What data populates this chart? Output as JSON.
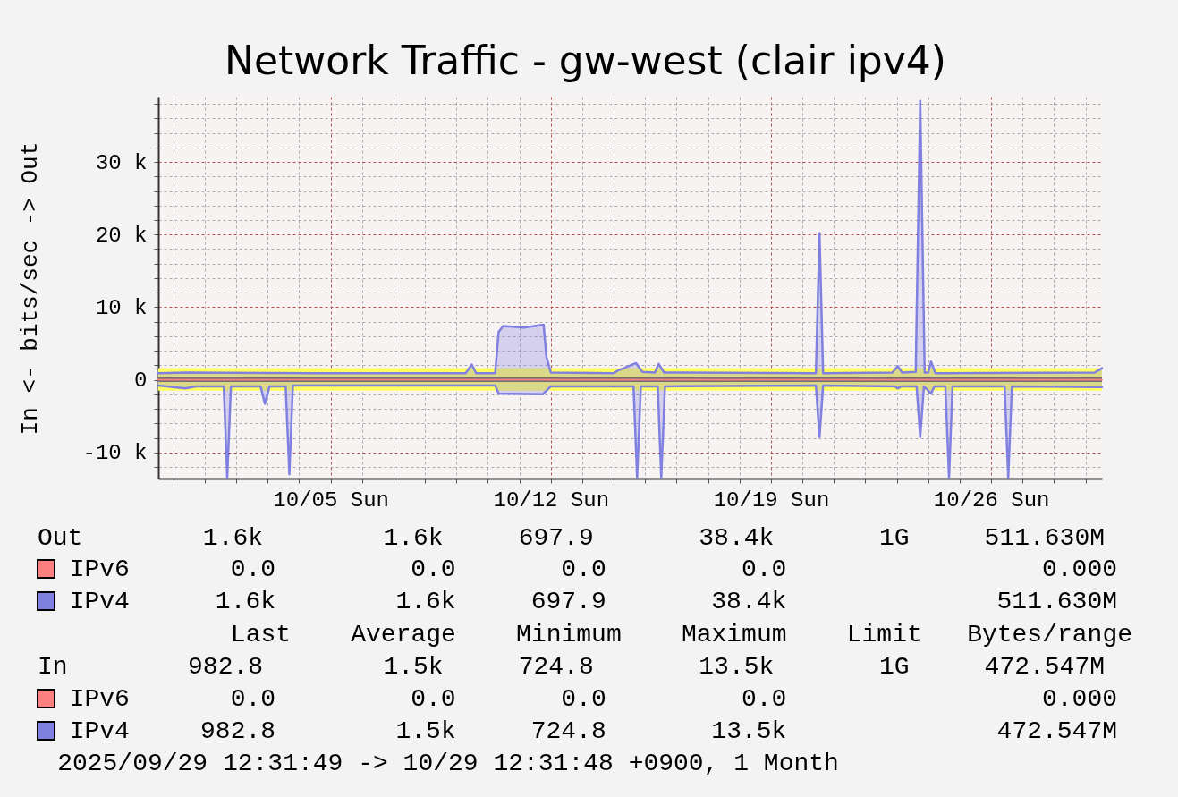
{
  "chart_data": {
    "type": "line",
    "title": "Network Traffic - gw-west (clair ipv4)",
    "ylabel": "In <- bits/sec -> Out",
    "xlim": [
      "2025-09-29T12:31",
      "2025-10-29T12:31"
    ],
    "xticks": [
      {
        "value": "2025-09-30",
        "label": null
      },
      {
        "value": "2025-10-01",
        "label": null
      },
      {
        "value": "2025-10-02",
        "label": null
      },
      {
        "value": "2025-10-03",
        "label": null
      },
      {
        "value": "2025-10-04",
        "label": null
      },
      {
        "value": "2025-10-05",
        "label": "10/05 Sun"
      },
      {
        "value": "2025-10-06",
        "label": null
      },
      {
        "value": "2025-10-07",
        "label": null
      },
      {
        "value": "2025-10-08",
        "label": null
      },
      {
        "value": "2025-10-09",
        "label": null
      },
      {
        "value": "2025-10-10",
        "label": null
      },
      {
        "value": "2025-10-11",
        "label": null
      },
      {
        "value": "2025-10-12",
        "label": "10/12 Sun"
      },
      {
        "value": "2025-10-13",
        "label": null
      },
      {
        "value": "2025-10-14",
        "label": null
      },
      {
        "value": "2025-10-15",
        "label": null
      },
      {
        "value": "2025-10-16",
        "label": null
      },
      {
        "value": "2025-10-17",
        "label": null
      },
      {
        "value": "2025-10-18",
        "label": null
      },
      {
        "value": "2025-10-19",
        "label": "10/19 Sun"
      },
      {
        "value": "2025-10-20",
        "label": null
      },
      {
        "value": "2025-10-21",
        "label": null
      },
      {
        "value": "2025-10-22",
        "label": null
      },
      {
        "value": "2025-10-23",
        "label": null
      },
      {
        "value": "2025-10-24",
        "label": null
      },
      {
        "value": "2025-10-25",
        "label": null
      },
      {
        "value": "2025-10-26",
        "label": "10/26 Sun"
      },
      {
        "value": "2025-10-27",
        "label": null
      },
      {
        "value": "2025-10-28",
        "label": null
      },
      {
        "value": "2025-10-29",
        "label": null
      }
    ],
    "ylim": [
      -13600,
      39000
    ],
    "yticks": [
      {
        "value": -12000,
        "label": null
      },
      {
        "value": -10000,
        "label": "-10 k"
      },
      {
        "value": -8000,
        "label": null
      },
      {
        "value": -6000,
        "label": null
      },
      {
        "value": -4000,
        "label": null
      },
      {
        "value": -2000,
        "label": null
      },
      0,
      {
        "value": 2000,
        "label": null
      },
      {
        "value": 4000,
        "label": null
      },
      {
        "value": 6000,
        "label": null
      },
      {
        "value": 8000,
        "label": null
      },
      {
        "value": 10000,
        "label": "10 k"
      },
      {
        "value": 12000,
        "label": null
      },
      {
        "value": 14000,
        "label": null
      },
      {
        "value": 16000,
        "label": null
      },
      {
        "value": 18000,
        "label": null
      },
      {
        "value": 20000,
        "label": "20 k"
      },
      {
        "value": 22000,
        "label": null
      },
      {
        "value": 24000,
        "label": null
      },
      {
        "value": 26000,
        "label": null
      },
      {
        "value": 28000,
        "label": null
      },
      {
        "value": 30000,
        "label": "30 k"
      },
      {
        "value": 32000,
        "label": null
      },
      {
        "value": 34000,
        "label": null
      },
      {
        "value": 36000,
        "label": null
      },
      {
        "value": 38000,
        "label": null
      }
    ],
    "grid": true,
    "legend": "bottom",
    "bands": [
      {
        "axis": "y",
        "from": -1500,
        "to": 1600,
        "color": "#ffff60"
      }
    ],
    "ref_lines": [
      {
        "axis": "y",
        "value": 0,
        "color": "#707070"
      }
    ],
    "series": [
      {
        "name": "IPv6",
        "color": "#ff8080",
        "type": "line",
        "x": [
          "2025-09-29T12:31",
          "2025-10-29T12:31"
        ],
        "values": [
          0,
          0
        ]
      },
      {
        "name": "IPv4",
        "color": "#8080e0",
        "type": "area",
        "x": [
          "2025-09-29T12:31",
          "2025-09-30T09:00",
          "2025-10-04T13:40",
          "2025-10-09T07:00",
          "2025-10-09T11:40",
          "2025-10-09T15:00",
          "2025-10-10T05:30",
          "2025-10-10T08:10",
          "2025-10-10T11:40",
          "2025-10-11T03:25",
          "2025-10-11T18:30",
          "2025-10-11T20:35",
          "2025-10-12T00:00",
          "2025-10-14T00:00",
          "2025-10-14T03:20",
          "2025-10-14T17:05",
          "2025-10-14T21:50",
          "2025-10-15T07:25",
          "2025-10-15T10:15",
          "2025-10-15T14:25",
          "2025-10-20T10:15",
          "2025-10-20T13:00",
          "2025-10-20T15:45",
          "2025-10-22T20:35",
          "2025-10-23T00:40",
          "2025-10-23T04:05",
          "2025-10-23T14:25",
          "2025-10-23T17:50",
          "2025-10-23T21:15",
          "2025-10-24T00:00",
          "2025-10-24T02:05",
          "2025-10-24T05:30",
          "2025-10-29T06:55",
          "2025-10-29T12:31"
        ],
        "values": [
          900,
          1000,
          900,
          900,
          2100,
          900,
          900,
          6600,
          7400,
          7200,
          7600,
          3200,
          1000,
          900,
          1300,
          2300,
          1100,
          1000,
          2200,
          1000,
          900,
          20200,
          900,
          1000,
          1900,
          1000,
          1100,
          38400,
          1000,
          1000,
          2500,
          900,
          1000,
          1600
        ]
      },
      {
        "name": "IPv6",
        "color": "#ff8080",
        "type": "line",
        "x": [
          "2025-09-29T12:31",
          "2025-10-29T12:31"
        ],
        "values": [
          0,
          0
        ]
      },
      {
        "name": "IPv4",
        "color": "#8080e0",
        "type": "area",
        "x": [
          "2025-09-29T12:31",
          "2025-09-30T09:00",
          "2025-09-30T17:05",
          "2025-10-01T14:25",
          "2025-10-01T17:05",
          "2025-10-01T19:55",
          "2025-10-02T18:30",
          "2025-10-02T21:50",
          "2025-10-03T01:25",
          "2025-10-03T13:40",
          "2025-10-03T16:30",
          "2025-10-03T19:10",
          "2025-10-10T05:30",
          "2025-10-10T08:10",
          "2025-10-11T17:50",
          "2025-10-12T00:00",
          "2025-10-14T15:05",
          "2025-10-14T17:50",
          "2025-10-14T20:40",
          "2025-10-15T09:35",
          "2025-10-15T12:15",
          "2025-10-15T15:05",
          "2025-10-20T10:15",
          "2025-10-20T13:00",
          "2025-10-20T15:45",
          "2025-10-22T22:35",
          "2025-10-23T00:40",
          "2025-10-23T03:25",
          "2025-10-23T15:05",
          "2025-10-23T17:50",
          "2025-10-23T20:40",
          "2025-10-24T02:05",
          "2025-10-24T04:45",
          "2025-10-24T13:00",
          "2025-10-24T15:50",
          "2025-10-24T18:30",
          "2025-10-26T10:15",
          "2025-10-26T13:00",
          "2025-10-26T15:50",
          "2025-10-29T12:31"
        ],
        "values": [
          -800,
          -1200,
          -900,
          -900,
          -13500,
          -900,
          -900,
          -3300,
          -900,
          -900,
          -13000,
          -800,
          -800,
          -1900,
          -2000,
          -900,
          -900,
          -13500,
          -900,
          -900,
          -13500,
          -900,
          -800,
          -7900,
          -800,
          -900,
          -1200,
          -900,
          -900,
          -7900,
          -900,
          -1900,
          -900,
          -900,
          -13500,
          -900,
          -900,
          -13500,
          -900,
          -1000
        ]
      }
    ],
    "annotations": [
      "Out        1.6k        1.6k     697.9       38.4k       1G     511.630M",
      "0.0         0.0       0.0         0.0                 0.000",
      "1.6k        1.6k     697.9       38.4k              511.630M",
      "Last    Average    Minimum    Maximum    Limit   Bytes/range",
      "In        982.8        1.5k     724.8       13.5k       1G     472.547M",
      "0.0         0.0       0.0         0.0                 0.000",
      "982.8        1.5k     724.8       13.5k              472.547M",
      "2025/09/29 12:31:49 -> 10/29 12:31:48 +0900, 1 Month"
    ]
  }
}
